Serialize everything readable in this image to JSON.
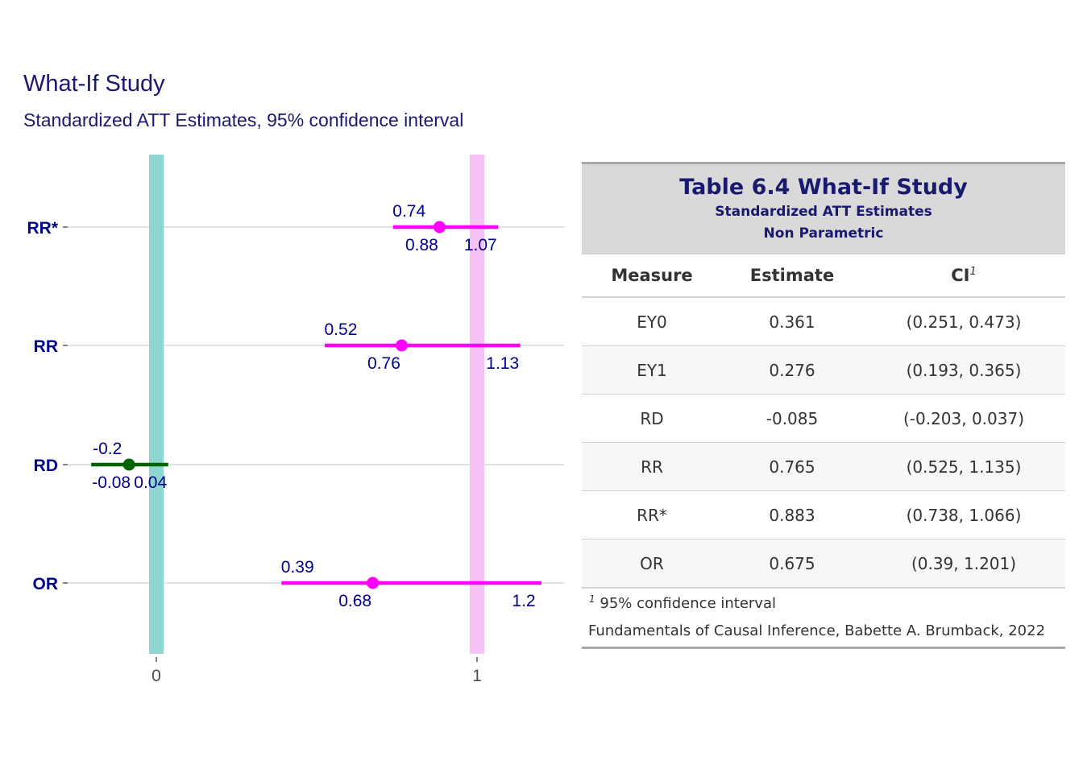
{
  "chart_data": {
    "type": "forest",
    "title": "What-If Study",
    "subtitle": "Standardized ATT Estimates, 95% confidence interval",
    "categories": [
      "OR",
      "RD",
      "RR",
      "RR*"
    ],
    "xlim": [
      -0.28,
      1.27
    ],
    "x_ticks": [
      "0",
      "1"
    ],
    "reference_lines": [
      {
        "x": 0,
        "color": "#8fd6d0"
      },
      {
        "x": 1,
        "color": "#f5c3f5"
      }
    ],
    "estimates": [
      {
        "measure": "RR*",
        "est": 0.883,
        "lci": 0.738,
        "uci": 1.066,
        "est_label": "0.88",
        "lci_label": "0.74",
        "uci_label": "1.07",
        "color": "#ff00ff",
        "label_color": "#00008b"
      },
      {
        "measure": "RR",
        "est": 0.765,
        "lci": 0.525,
        "uci": 1.135,
        "est_label": "0.76",
        "lci_label": "0.52",
        "uci_label": "1.13",
        "color": "#ff00ff",
        "label_color": "#00008b"
      },
      {
        "measure": "RD",
        "est": -0.085,
        "lci": -0.203,
        "uci": 0.037,
        "est_label": "-0.08",
        "lci_label": "-0.2",
        "uci_label": "0.04",
        "color": "#006400",
        "label_color": "#00008b"
      },
      {
        "measure": "OR",
        "est": 0.675,
        "lci": 0.39,
        "uci": 1.201,
        "est_label": "0.68",
        "lci_label": "0.39",
        "uci_label": "1.2",
        "color": "#ff00ff",
        "label_color": "#00008b"
      }
    ],
    "axis_label_color": "#00008b",
    "grid": true
  },
  "table": {
    "title": "Table 6.4 What-If Study",
    "subtitle1": "Standardized ATT Estimates",
    "subtitle2": "Non Parametric",
    "columns": {
      "measure": "Measure",
      "estimate": "Estimate",
      "ci": "CI",
      "ci_footnote_mark": "1"
    },
    "rows": [
      {
        "measure": "EY0",
        "estimate": "0.361",
        "ci": "(0.251, 0.473)"
      },
      {
        "measure": "EY1",
        "estimate": "0.276",
        "ci": "(0.193, 0.365)"
      },
      {
        "measure": "RD",
        "estimate": "-0.085",
        "ci": "(-0.203, 0.037)"
      },
      {
        "measure": "RR",
        "estimate": "0.765",
        "ci": "(0.525, 1.135)"
      },
      {
        "measure": "RR*",
        "estimate": "0.883",
        "ci": "(0.738, 1.066)"
      },
      {
        "measure": "OR",
        "estimate": "0.675",
        "ci": "(0.39, 1.201)"
      }
    ],
    "footnote_mark": "1",
    "footnote": "95% confidence interval",
    "source": "Fundamentals of Causal Inference, Babette A. Brumback, 2022",
    "header_bg": "#d9d9d9",
    "title_color": "#191970"
  }
}
